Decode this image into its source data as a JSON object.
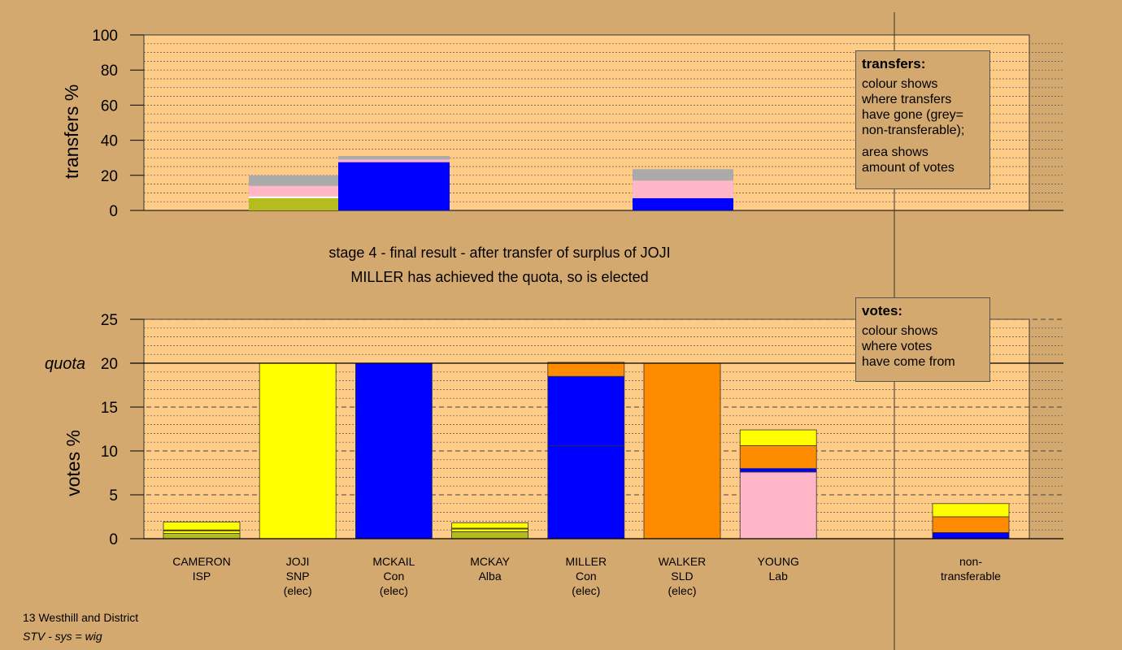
{
  "chart_data": [
    {
      "type": "bar",
      "stacked": true,
      "ylabel": "transfers %",
      "ylim": [
        0,
        100
      ],
      "yticks": [
        0,
        20,
        40,
        60,
        80,
        100
      ],
      "categories": [
        "CAMERON",
        "JOJI",
        "MCKAIL",
        "MCKAY",
        "MILLER",
        "WALKER",
        "YOUNG",
        "non-transferable"
      ],
      "bars": [
        {
          "category": "CAMERON",
          "segments": [
            {
              "color": "#b5bd1e",
              "value": 7
            },
            {
              "color": "#ffffff",
              "value": 1
            },
            {
              "color": "#ffb6c6",
              "value": 6
            },
            {
              "color": "#aaaaaa",
              "value": 6
            }
          ]
        },
        {
          "category": "JOJI",
          "segments": [
            {
              "color": "#0000ff",
              "value": 27.5
            },
            {
              "color": "#ffb6c6",
              "value": 1.5
            },
            {
              "color": "#aaaaaa",
              "value": 2
            }
          ]
        },
        {
          "category": "MILLER",
          "segments": [
            {
              "color": "#0000ff",
              "value": 7
            },
            {
              "color": "#ffb6c6",
              "value": 10
            },
            {
              "color": "#aaaaaa",
              "value": 6.5
            }
          ]
        }
      ],
      "legend": {
        "title": "transfers:",
        "lines": [
          "colour shows",
          "where transfers",
          "have gone (grey=",
          "non-transferable);"
        ],
        "lines2": [
          "area shows",
          "amount of votes"
        ]
      }
    },
    {
      "type": "bar",
      "stacked": true,
      "ylabel": "votes %",
      "ylim": [
        0,
        25
      ],
      "yticks": [
        0,
        5,
        10,
        15,
        20,
        25
      ],
      "quota": 20,
      "quota_label": "quota",
      "candidates": [
        {
          "name": "CAMERON",
          "party": "ISP",
          "status": "",
          "segments": [
            {
              "color": "#b5bd1e",
              "value": 0.6
            },
            {
              "color": "#ffff00",
              "value": 0.3
            },
            {
              "color": "#b5bd1e",
              "value": 0.1
            },
            {
              "color": "#ffff00",
              "value": 0.9
            }
          ]
        },
        {
          "name": "JOJI",
          "party": "SNP",
          "status": "(elec)",
          "segments": [
            {
              "color": "#ffff00",
              "value": 20
            }
          ]
        },
        {
          "name": "MCKAIL",
          "party": "Con",
          "status": "(elec)",
          "segments": [
            {
              "color": "#0000ff",
              "value": 20
            }
          ]
        },
        {
          "name": "MCKAY",
          "party": "Alba",
          "status": "",
          "segments": [
            {
              "color": "#b5bd1e",
              "value": 0.8
            },
            {
              "color": "#ffff00",
              "value": 0.3
            },
            {
              "color": "#b5bd1e",
              "value": 0.1
            },
            {
              "color": "#ffff00",
              "value": 0.6
            }
          ]
        },
        {
          "name": "MILLER",
          "party": "Con",
          "status": "(elec)",
          "segments": [
            {
              "color": "#0000ff",
              "value": 10.6
            },
            {
              "color": "#0000ff",
              "value": 7.9
            },
            {
              "color": "#ff8c00",
              "value": 1.5
            },
            {
              "color": "#ffff00",
              "value": 0.1
            }
          ]
        },
        {
          "name": "WALKER",
          "party": "SLD",
          "status": "(elec)",
          "segments": [
            {
              "color": "#ff8c00",
              "value": 20
            }
          ]
        },
        {
          "name": "YOUNG",
          "party": "Lab",
          "status": "",
          "segments": [
            {
              "color": "#ffb6c6",
              "value": 7.6
            },
            {
              "color": "#0000ff",
              "value": 0.4
            },
            {
              "color": "#ff8c00",
              "value": 2.6
            },
            {
              "color": "#ffff00",
              "value": 1.8
            }
          ]
        }
      ],
      "nontransferable": {
        "line1": "non-",
        "line2": "transferable",
        "segments": [
          {
            "color": "#0000ff",
            "value": 0.7
          },
          {
            "color": "#ff8c00",
            "value": 1.8
          },
          {
            "color": "#ffff00",
            "value": 1.5
          }
        ]
      },
      "legend": {
        "title": "votes:",
        "lines": [
          "colour shows",
          "where votes",
          "have come from"
        ]
      }
    }
  ],
  "caption": {
    "line1": "stage 4 - final result - after transfer of surplus of JOJI",
    "line2": "MILLER has achieved the quota, so is elected"
  },
  "footer": {
    "line1": "13 Westhill and District",
    "line2": "STV - sys = wig"
  },
  "colors": {
    "background": "#d4a970",
    "plot_background": "#ffcc88"
  }
}
